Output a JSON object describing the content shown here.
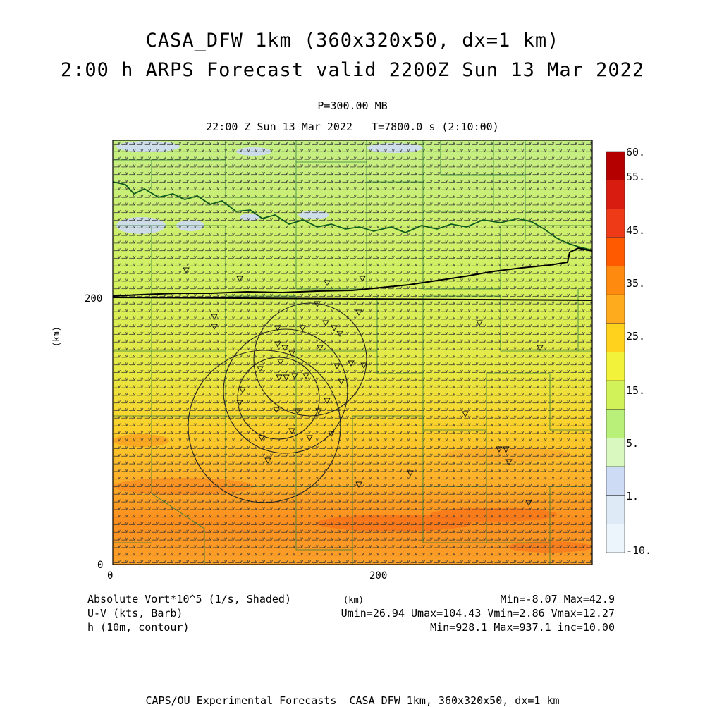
{
  "title": {
    "line1": "CASA_DFW 1km (360x320x50, dx=1 km)",
    "line2": "2:00 h ARPS Forecast valid 2200Z Sun 13 Mar 2022"
  },
  "subtitle": {
    "level": "P=300.00 MB",
    "time": "22:00 Z Sun 13 Mar 2022   T=7800.0 s (2:10:00)"
  },
  "axes": {
    "x_unit": "(km)",
    "y_unit": "(km)",
    "x_ticks": [
      "0",
      "200"
    ],
    "y_ticks": [
      "0",
      "200"
    ]
  },
  "colorbar": {
    "labels": [
      "60.",
      "55.",
      "45.",
      "35.",
      "25.",
      "15.",
      "5.",
      "1.",
      "-10."
    ],
    "colors": [
      "#b50000",
      "#d81c10",
      "#ee3a16",
      "#ff5a00",
      "#ff8a10",
      "#ffab1e",
      "#ffd21e",
      "#f2f23a",
      "#d2f25a",
      "#b8f07a",
      "#d8f8c0",
      "#cedbf5",
      "#dfeaf7",
      "#ebf5fb"
    ]
  },
  "legend": {
    "shaded": "Absolute Vort*10^5 (1/s, Shaded)",
    "shaded_stats": "Min=-8.07 Max=42.9",
    "barb": "U-V (kts, Barb)",
    "barb_stats": "Umin=26.94 Umax=104.43 Vmin=2.86 Vmax=12.27",
    "contour": "h (10m, contour)",
    "contour_stats": "Min=928.1 Max=937.1 inc=10.00"
  },
  "footer": "CAPS/OU Experimental Forecasts  CASA DFW 1km, 360x320x50, dx=1 km"
}
